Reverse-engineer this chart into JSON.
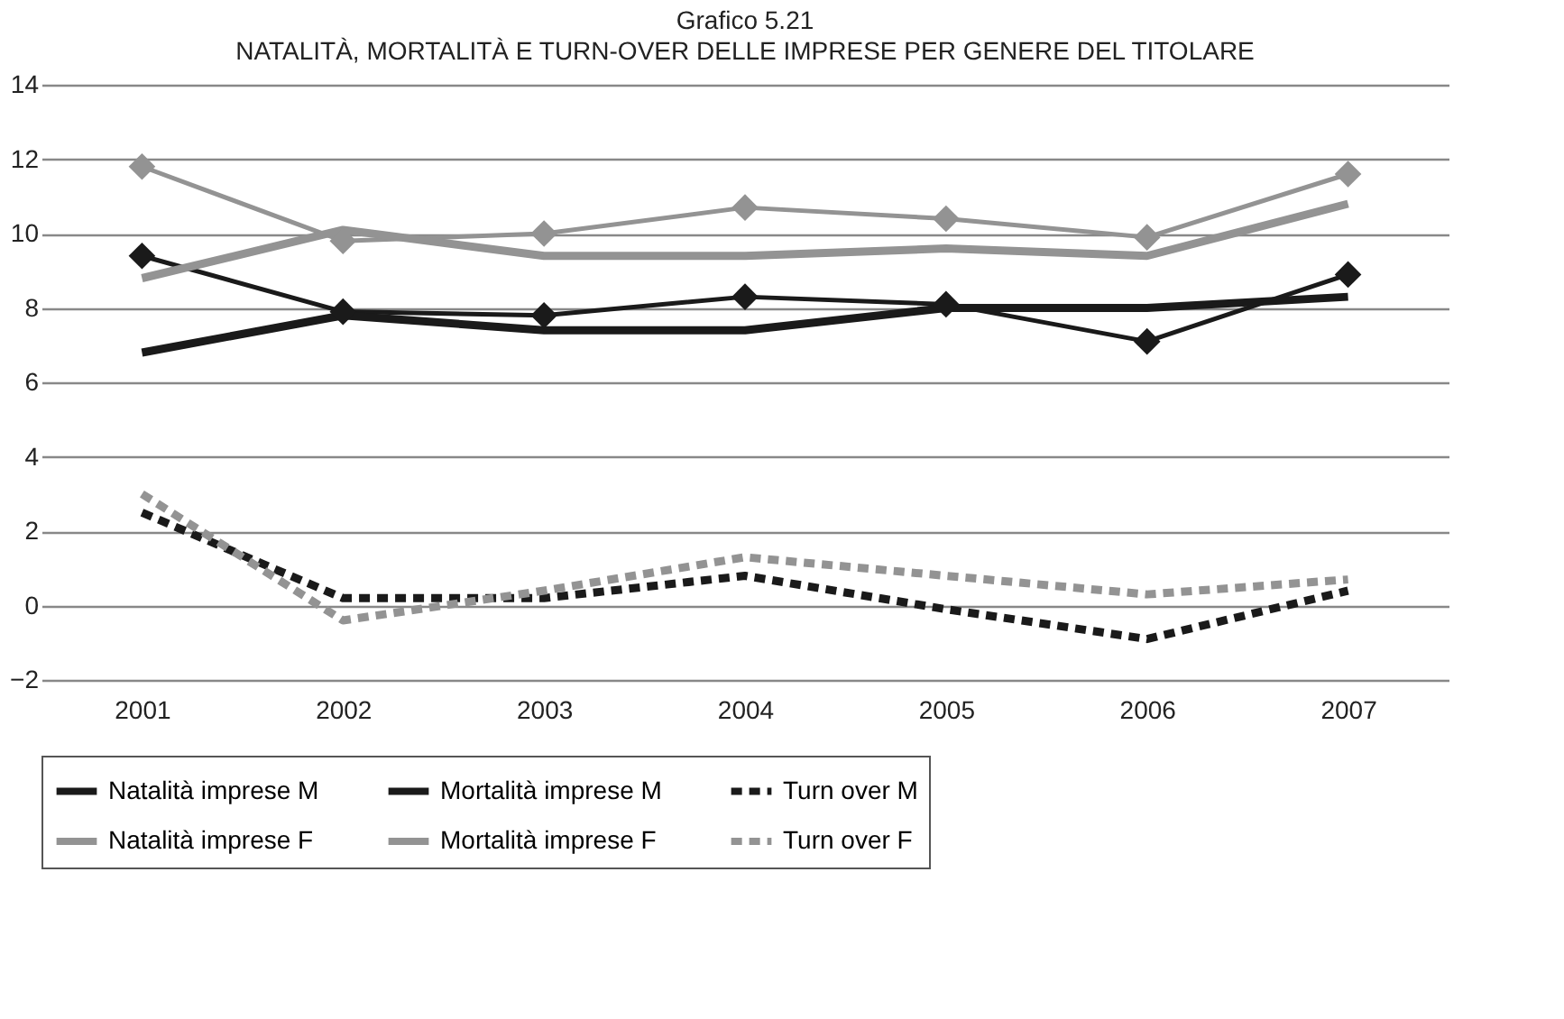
{
  "chart_data": {
    "type": "line",
    "title": "Grafico 5.21",
    "subtitle": "NATALITÀ, MORTALITÀ E TURN-OVER DELLE IMPRESE PER GENERE DEL TITOLARE",
    "categories": [
      "2001",
      "2002",
      "2003",
      "2004",
      "2005",
      "2006",
      "2007"
    ],
    "series": [
      {
        "name": "Natalità imprese M",
        "color": "#1a1a1a",
        "marker": "diamond",
        "line_style": "solid",
        "values": [
          9.4,
          7.9,
          7.8,
          8.3,
          8.1,
          7.1,
          8.9
        ]
      },
      {
        "name": "Mortalità imprese M",
        "color": "#1a1a1a",
        "marker": "none",
        "line_style": "solid",
        "values": [
          6.8,
          7.8,
          7.4,
          7.4,
          8.0,
          8.0,
          8.3
        ]
      },
      {
        "name": "Turn over M",
        "color": "#1a1a1a",
        "marker": "none",
        "line_style": "dashed",
        "values": [
          2.5,
          0.2,
          0.2,
          0.8,
          -0.1,
          -0.9,
          0.4
        ]
      },
      {
        "name": "Natalità imprese F",
        "color": "#939393",
        "marker": "diamond",
        "line_style": "solid",
        "values": [
          11.8,
          9.8,
          10.0,
          10.7,
          10.4,
          9.9,
          11.6
        ]
      },
      {
        "name": "Mortalità imprese F",
        "color": "#939393",
        "marker": "none",
        "line_style": "solid",
        "values": [
          8.8,
          10.1,
          9.4,
          9.4,
          9.6,
          9.4,
          10.8
        ]
      },
      {
        "name": "Turn over F",
        "color": "#939393",
        "marker": "none",
        "line_style": "dashed",
        "values": [
          3.0,
          -0.4,
          0.4,
          1.3,
          0.8,
          0.3,
          0.7
        ]
      }
    ],
    "ylim": [
      -2,
      14
    ],
    "yticks": [
      -2,
      0,
      2,
      4,
      6,
      8,
      10,
      12,
      14
    ],
    "grid": "y",
    "legend": "bottom"
  }
}
